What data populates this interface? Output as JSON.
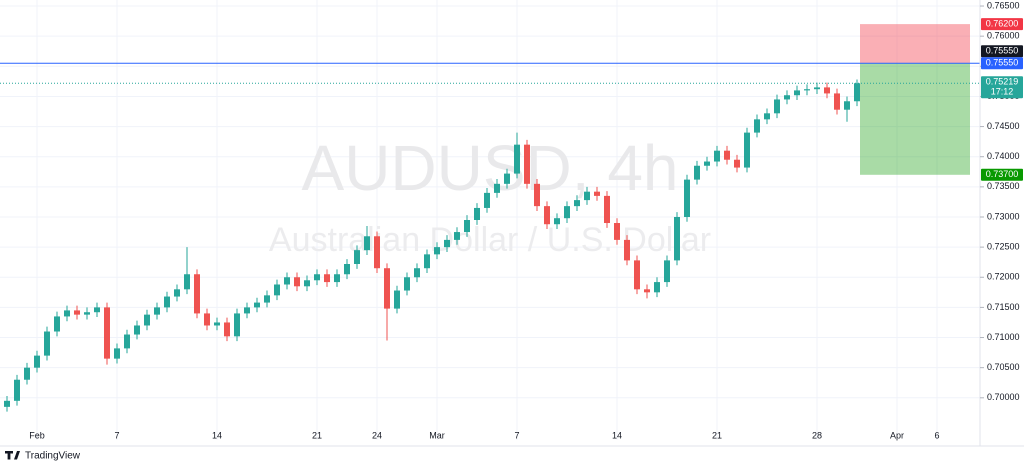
{
  "chart_data": {
    "type": "candlestick",
    "title": "AUDUSD, 4h",
    "subtitle": "Australian Dollar / U.S. Dollar",
    "up_color": "#26a69a",
    "down_color": "#ef5350",
    "grid": true,
    "x": [
      -1.5,
      -1,
      -0.5,
      0,
      0.5,
      1,
      1.5,
      2,
      2.5,
      3,
      3.5,
      4,
      4.5,
      5,
      5.5,
      6,
      6.5,
      7,
      7.5,
      8,
      8.5,
      9,
      9.5,
      10,
      10.5,
      11,
      11.5,
      12,
      12.5,
      13,
      13.5,
      14,
      14.5,
      15,
      15.5,
      16,
      16.5,
      17,
      17.5,
      18,
      18.5,
      19,
      19.5,
      20,
      20.5,
      21,
      21.5,
      22,
      22.5,
      23,
      23.5,
      24,
      24.5,
      25,
      25.5,
      26,
      26.5,
      27,
      27.5,
      28,
      28.5,
      29,
      29.5,
      30,
      30.5,
      31,
      31.5,
      32,
      32.5,
      33,
      33.5,
      34,
      34.5,
      35,
      35.5,
      36,
      36.5,
      37,
      37.5,
      38,
      38.5,
      39,
      39.5,
      40,
      40.5,
      41
    ],
    "open": [
      0.6985,
      0.6995,
      0.703,
      0.705,
      0.707,
      0.711,
      0.7135,
      0.7145,
      0.7138,
      0.7142,
      0.715,
      0.7065,
      0.7082,
      0.7105,
      0.712,
      0.7138,
      0.715,
      0.7168,
      0.718,
      0.7205,
      0.714,
      0.712,
      0.7125,
      0.7102,
      0.714,
      0.715,
      0.7158,
      0.717,
      0.7188,
      0.72,
      0.7185,
      0.7195,
      0.7205,
      0.7192,
      0.7205,
      0.7222,
      0.7245,
      0.7268,
      0.7215,
      0.7148,
      0.7178,
      0.72,
      0.7215,
      0.7238,
      0.725,
      0.7262,
      0.7275,
      0.7295,
      0.7315,
      0.734,
      0.7355,
      0.7372,
      0.742,
      0.7355,
      0.7318,
      0.7288,
      0.7298,
      0.7318,
      0.7328,
      0.7342,
      0.7335,
      0.729,
      0.7262,
      0.7228,
      0.718,
      0.7175,
      0.7192,
      0.7228,
      0.73,
      0.7362,
      0.7385,
      0.7392,
      0.741,
      0.7395,
      0.7382,
      0.744,
      0.7462,
      0.7472,
      0.7495,
      0.7502,
      0.751,
      0.7512,
      0.7515,
      0.7505,
      0.7478,
      0.7492
    ],
    "high": [
      0.7003,
      0.7038,
      0.7058,
      0.7078,
      0.7118,
      0.7143,
      0.7153,
      0.7153,
      0.715,
      0.7158,
      0.7158,
      0.709,
      0.7113,
      0.7128,
      0.7146,
      0.7158,
      0.7176,
      0.7188,
      0.725,
      0.7213,
      0.7148,
      0.7133,
      0.7133,
      0.7148,
      0.7158,
      0.7166,
      0.7178,
      0.7196,
      0.7208,
      0.7208,
      0.7203,
      0.7213,
      0.7213,
      0.7213,
      0.723,
      0.7253,
      0.7285,
      0.7276,
      0.7223,
      0.7186,
      0.7208,
      0.7223,
      0.7246,
      0.7258,
      0.727,
      0.7283,
      0.7303,
      0.7323,
      0.7348,
      0.7363,
      0.738,
      0.744,
      0.7428,
      0.7363,
      0.7326,
      0.7306,
      0.7326,
      0.7336,
      0.735,
      0.735,
      0.7343,
      0.7298,
      0.727,
      0.7236,
      0.7188,
      0.72,
      0.7236,
      0.7308,
      0.737,
      0.7393,
      0.74,
      0.7418,
      0.7418,
      0.7403,
      0.7448,
      0.747,
      0.748,
      0.7503,
      0.751,
      0.7518,
      0.752,
      0.7523,
      0.7523,
      0.7513,
      0.75,
      0.7528
    ],
    "low": [
      0.6977,
      0.6987,
      0.7022,
      0.7042,
      0.7062,
      0.7102,
      0.7127,
      0.713,
      0.713,
      0.7134,
      0.7055,
      0.7057,
      0.7074,
      0.7097,
      0.7112,
      0.713,
      0.7142,
      0.716,
      0.7172,
      0.7132,
      0.7112,
      0.7112,
      0.7094,
      0.7094,
      0.7132,
      0.7142,
      0.715,
      0.7162,
      0.718,
      0.7177,
      0.7177,
      0.7187,
      0.7184,
      0.7184,
      0.7197,
      0.7214,
      0.7237,
      0.7207,
      0.7095,
      0.714,
      0.717,
      0.7192,
      0.7207,
      0.723,
      0.7242,
      0.7254,
      0.7267,
      0.7287,
      0.7307,
      0.7332,
      0.7347,
      0.7364,
      0.7347,
      0.731,
      0.728,
      0.728,
      0.729,
      0.731,
      0.732,
      0.7327,
      0.7282,
      0.7254,
      0.722,
      0.7172,
      0.7165,
      0.7167,
      0.7184,
      0.722,
      0.7292,
      0.7354,
      0.7377,
      0.7384,
      0.7387,
      0.7374,
      0.7374,
      0.7432,
      0.7454,
      0.7464,
      0.7487,
      0.7494,
      0.7502,
      0.7504,
      0.7497,
      0.747,
      0.7458,
      0.7484
    ],
    "close": [
      0.6995,
      0.703,
      0.705,
      0.707,
      0.711,
      0.7135,
      0.7145,
      0.7138,
      0.7142,
      0.715,
      0.7065,
      0.7082,
      0.7105,
      0.712,
      0.7138,
      0.715,
      0.7168,
      0.718,
      0.7205,
      0.714,
      0.712,
      0.7125,
      0.7102,
      0.714,
      0.715,
      0.7158,
      0.717,
      0.7188,
      0.72,
      0.7185,
      0.7195,
      0.7205,
      0.7192,
      0.7205,
      0.7222,
      0.7245,
      0.7268,
      0.7215,
      0.7148,
      0.7178,
      0.72,
      0.7215,
      0.7238,
      0.725,
      0.7262,
      0.7275,
      0.7295,
      0.7315,
      0.734,
      0.7355,
      0.7372,
      0.742,
      0.7355,
      0.7318,
      0.7288,
      0.7298,
      0.7318,
      0.7328,
      0.7342,
      0.7335,
      0.729,
      0.7262,
      0.7228,
      0.718,
      0.7175,
      0.7192,
      0.7228,
      0.73,
      0.7362,
      0.7385,
      0.7392,
      0.741,
      0.7395,
      0.7382,
      0.744,
      0.7462,
      0.7472,
      0.7495,
      0.7502,
      0.751,
      0.7512,
      0.7515,
      0.7505,
      0.7478,
      0.7492,
      0.75219
    ],
    "xlim": [
      -1.85,
      47.15
    ],
    "xticks": [
      {
        "value": 0,
        "label": "Feb"
      },
      {
        "value": 4,
        "label": "7"
      },
      {
        "value": 9,
        "label": "14"
      },
      {
        "value": 14,
        "label": "21"
      },
      {
        "value": 17,
        "label": "24"
      },
      {
        "value": 20,
        "label": "Mar"
      },
      {
        "value": 24,
        "label": "7"
      },
      {
        "value": 29,
        "label": "14"
      },
      {
        "value": 34,
        "label": "21"
      },
      {
        "value": 39,
        "label": "28"
      },
      {
        "value": 43,
        "label": "Apr"
      },
      {
        "value": 45,
        "label": "6"
      }
    ],
    "ylim": [
      0.693,
      0.766
    ],
    "yticks": [
      {
        "value": 0.7,
        "label": "0.70000"
      },
      {
        "value": 0.705,
        "label": "0.70500"
      },
      {
        "value": 0.71,
        "label": "0.71000"
      },
      {
        "value": 0.715,
        "label": "0.71500"
      },
      {
        "value": 0.72,
        "label": "0.72000"
      },
      {
        "value": 0.725,
        "label": "0.72500"
      },
      {
        "value": 0.73,
        "label": "0.73000"
      },
      {
        "value": 0.735,
        "label": "0.73500"
      },
      {
        "value": 0.74,
        "label": "0.74000"
      },
      {
        "value": 0.745,
        "label": "0.74500"
      },
      {
        "value": 0.75,
        "label": "0.75000"
      },
      {
        "value": 0.755,
        "label": "0.75500"
      },
      {
        "value": 0.76,
        "label": "0.76000"
      },
      {
        "value": 0.765,
        "label": "0.76500"
      }
    ],
    "last_price": 0.75219,
    "countdown": "17:12",
    "horizontal_line": {
      "value": 0.7555,
      "label": "0.75550",
      "color": "#2962ff"
    },
    "position": {
      "x_range": [
        41.15,
        46.65
      ],
      "entry": {
        "value": 0.7555,
        "label": "0.75550"
      },
      "stop": {
        "value": 0.762,
        "label": "0.76200"
      },
      "target": {
        "value": 0.737,
        "label": "0.73700"
      }
    }
  },
  "footer": {
    "brand": "TradingView"
  }
}
